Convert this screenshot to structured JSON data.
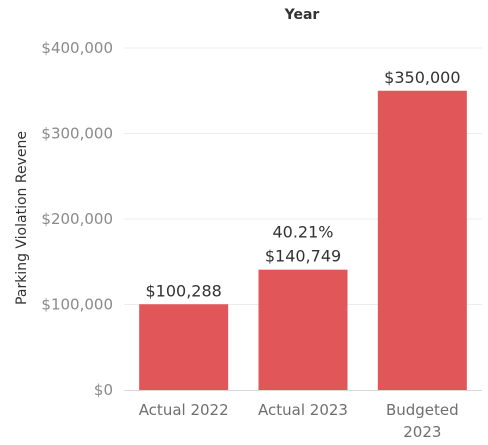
{
  "chart_data": {
    "type": "bar",
    "title": "",
    "xlabel": "Year",
    "ylabel": "Parking Violation Revene",
    "categories": [
      [
        "Actual 2022"
      ],
      [
        "Actual 2023"
      ],
      [
        "Budgeted",
        "2023"
      ]
    ],
    "values": [
      100288,
      140749,
      350000
    ],
    "data_labels": [
      [
        "$100,288"
      ],
      [
        "40.21%",
        "$140,749"
      ],
      [
        "$350,000"
      ]
    ],
    "ylim": [
      0,
      400000
    ],
    "yticks": [
      0,
      100000,
      200000,
      300000,
      400000
    ],
    "ytick_labels": [
      "$0",
      "$100,000",
      "$200,000",
      "$300,000",
      "$400,000"
    ],
    "grid": true,
    "bar_color": "#E15759",
    "grid_color": "#ECECEC"
  }
}
